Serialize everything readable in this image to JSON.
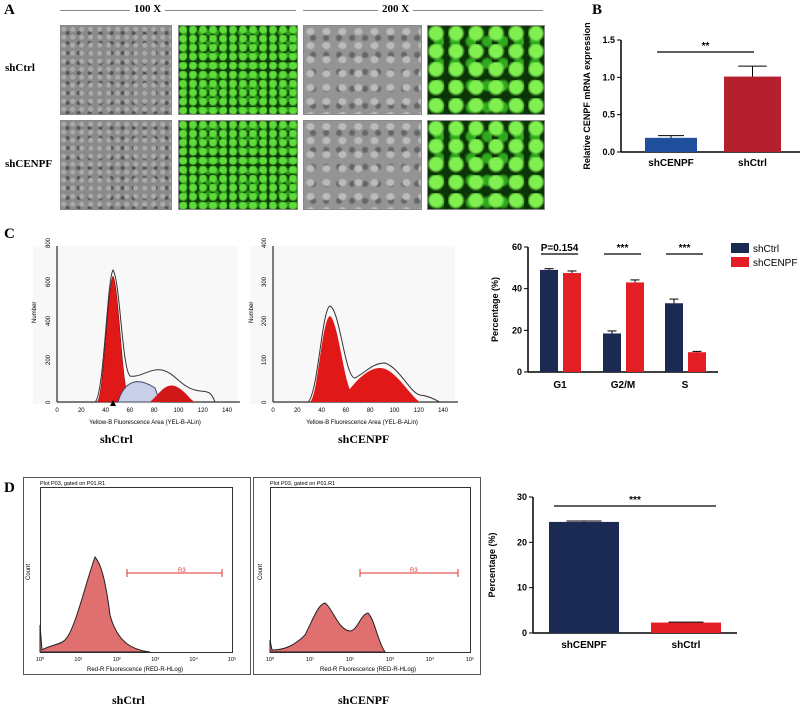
{
  "panels": {
    "a": "A",
    "b": "B",
    "c": "C",
    "d": "D"
  },
  "panel_a": {
    "mag1": "100 X",
    "mag2": "200 X",
    "rows": [
      "shCtrl",
      "shCENPF"
    ]
  },
  "panel_c": {
    "hist_xlabel": "Yellow-B Fluorescence Area (YEL-B-ALin)",
    "hist_ylabel": "Number",
    "hist_left": {
      "label": "shCtrl",
      "yticks": [
        "0",
        "200",
        "400",
        "600",
        "800"
      ],
      "xticks": [
        "0",
        "20",
        "40",
        "60",
        "80",
        "100",
        "120",
        "140"
      ]
    },
    "hist_right": {
      "label": "shCENPF",
      "yticks": [
        "0",
        "100",
        "200",
        "300",
        "400"
      ],
      "xticks": [
        "0",
        "20",
        "40",
        "60",
        "80",
        "100",
        "120",
        "140"
      ]
    }
  },
  "panel_d": {
    "title": "Plot P03, gated on P01.R1",
    "xlabel": "Red-R Fluorescence (RED-R-HLog)",
    "ylabel": "Count",
    "gate": "R3",
    "yticks": [
      "0",
      "50",
      "100",
      "150",
      "200",
      "250",
      "300",
      "350",
      "400",
      "450",
      "500"
    ],
    "xticks": [
      "10⁰",
      "10¹",
      "10²",
      "10³",
      "10⁴",
      "10⁵"
    ],
    "labels": [
      "shCtrl",
      "shCENPF"
    ]
  },
  "colors": {
    "blue": "#1f4e9c",
    "red_b": "#b5202e",
    "navy": "#1b2a52",
    "red": "#e31e24",
    "hist_red": "#e07070"
  },
  "chart_data": [
    {
      "type": "bar",
      "title": "",
      "ylabel": "Relative CENPF mRNA expression",
      "categories": [
        "shCENPF",
        "shCtrl"
      ],
      "values": [
        0.19,
        1.01
      ],
      "errors": [
        0.03,
        0.14
      ],
      "ylim": [
        0,
        1.5
      ],
      "yticks": [
        "0.0",
        "0.5",
        "1.0",
        "1.5"
      ],
      "significance": "**"
    },
    {
      "type": "bar",
      "ylabel": "Percentage (%)",
      "categories": [
        "G1",
        "G2/M",
        "S"
      ],
      "series": [
        {
          "name": "shCtrl",
          "values": [
            49,
            18.5,
            33
          ],
          "errors": [
            0.6,
            1.2,
            2
          ]
        },
        {
          "name": "shCENPF",
          "values": [
            47.5,
            43,
            9.5
          ],
          "errors": [
            1,
            1.2,
            0.4
          ]
        }
      ],
      "ylim": [
        0,
        60
      ],
      "yticks": [
        "0",
        "20",
        "40",
        "60"
      ],
      "significance": [
        "P=0.154",
        "***",
        "***"
      ],
      "legend": "right"
    },
    {
      "type": "bar",
      "ylabel": "Percentage (%)",
      "categories": [
        "shCENPF",
        "shCtrl"
      ],
      "values": [
        24.5,
        2.3
      ],
      "errors": [
        0.2,
        0.1
      ],
      "ylim": [
        0,
        30
      ],
      "yticks": [
        "0",
        "10",
        "20",
        "30"
      ],
      "significance": "***"
    }
  ]
}
